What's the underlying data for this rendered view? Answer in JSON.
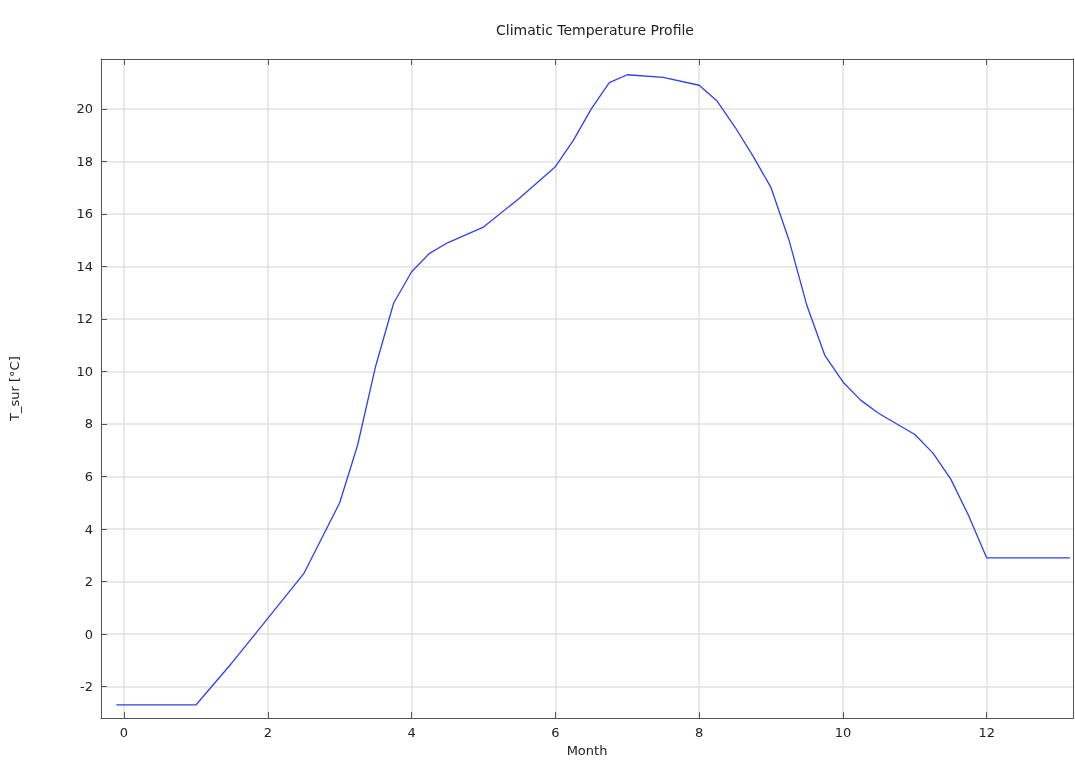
{
  "chart_data": {
    "type": "line",
    "title": "Climatic Temperature Profile",
    "xlabel": "Month",
    "ylabel": "T_sur [°C]",
    "x": [
      -0.1,
      1,
      1.5,
      2,
      2.5,
      3,
      3.25,
      3.5,
      3.75,
      4,
      4.25,
      4.5,
      5,
      5.5,
      6,
      6.25,
      6.5,
      6.75,
      7,
      7.5,
      8,
      8.25,
      8.5,
      8.75,
      9,
      9.25,
      9.5,
      9.75,
      10,
      10.25,
      10.5,
      10.75,
      11,
      11.25,
      11.5,
      11.75,
      12,
      13.15
    ],
    "series": [
      {
        "color": "#3040f0",
        "values": [
          -2.7,
          -2.7,
          -1.1,
          0.6,
          2.3,
          5.0,
          7.2,
          10.2,
          12.6,
          13.8,
          14.5,
          14.9,
          15.5,
          16.6,
          17.8,
          18.8,
          20.0,
          21.0,
          21.3,
          21.2,
          20.9,
          20.3,
          19.3,
          18.2,
          17.0,
          15.0,
          12.5,
          10.6,
          9.6,
          8.9,
          8.4,
          8.0,
          7.6,
          6.9,
          5.9,
          4.5,
          2.9,
          2.9
        ]
      }
    ],
    "xlim": [
      -0.32,
      13.2
    ],
    "xticks": [
      0,
      2,
      4,
      6,
      8,
      10,
      12
    ],
    "ylim": [
      -3.2,
      21.9
    ],
    "yticks": [
      -2,
      0,
      2,
      4,
      6,
      8,
      10,
      12,
      14,
      16,
      18,
      20
    ],
    "grid": true,
    "marker": "none",
    "line_style": "solid"
  }
}
